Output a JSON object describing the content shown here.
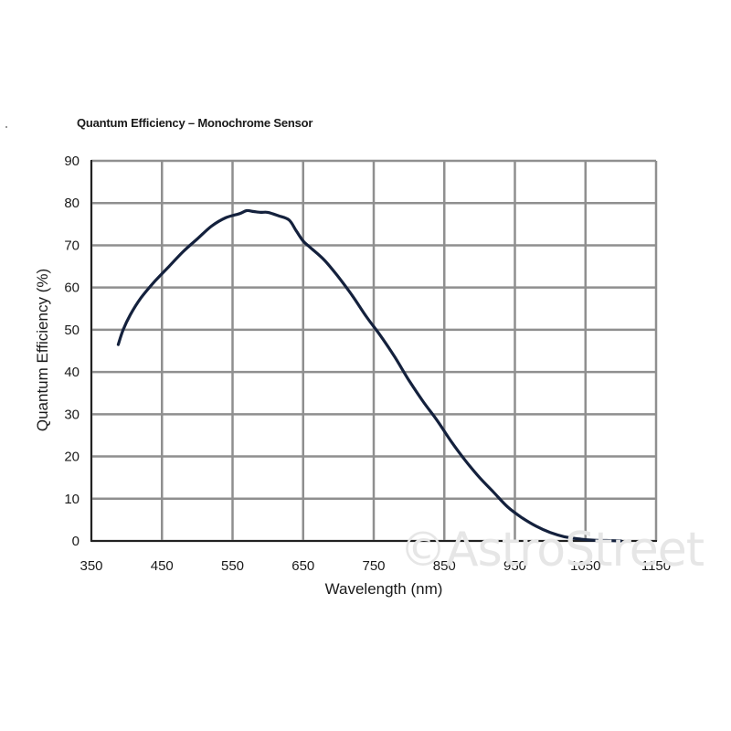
{
  "chart_data": {
    "type": "line",
    "title": "Quantum Efficiency – Monochrome Sensor",
    "xlabel": "Wavelength (nm)",
    "ylabel": "Quantum Efficiency (%)",
    "xlim": [
      350,
      1150
    ],
    "ylim": [
      0,
      90
    ],
    "x_ticks": [
      350,
      450,
      550,
      650,
      750,
      850,
      950,
      1050,
      1150
    ],
    "y_ticks": [
      0,
      10,
      20,
      30,
      40,
      50,
      60,
      70,
      80,
      90
    ],
    "grid": true,
    "line_color": "#14213d",
    "grid_color": "#8f8f8f",
    "series": [
      {
        "x": [
          388,
          395,
          405,
          420,
          440,
          460,
          480,
          500,
          520,
          540,
          560,
          570,
          580,
          590,
          600,
          615,
          630,
          640,
          650,
          660,
          680,
          700,
          720,
          740,
          760,
          780,
          800,
          820,
          840,
          860,
          880,
          900,
          920,
          940,
          960,
          980,
          1000,
          1020,
          1040,
          1060,
          1080,
          1100
        ],
        "y": [
          46.5,
          50,
          53.5,
          57.5,
          61.5,
          65,
          68.5,
          71.5,
          74.5,
          76.5,
          77.5,
          78.2,
          78,
          77.8,
          77.8,
          77,
          76,
          73.5,
          71,
          69.5,
          66.5,
          62.5,
          58,
          53,
          48.5,
          43.5,
          38,
          33,
          28.5,
          23.5,
          19,
          15,
          11.5,
          8,
          5.5,
          3.5,
          2,
          1,
          0.5,
          0.2,
          0.1,
          0
        ]
      }
    ]
  },
  "watermark": "©AstroStreet"
}
